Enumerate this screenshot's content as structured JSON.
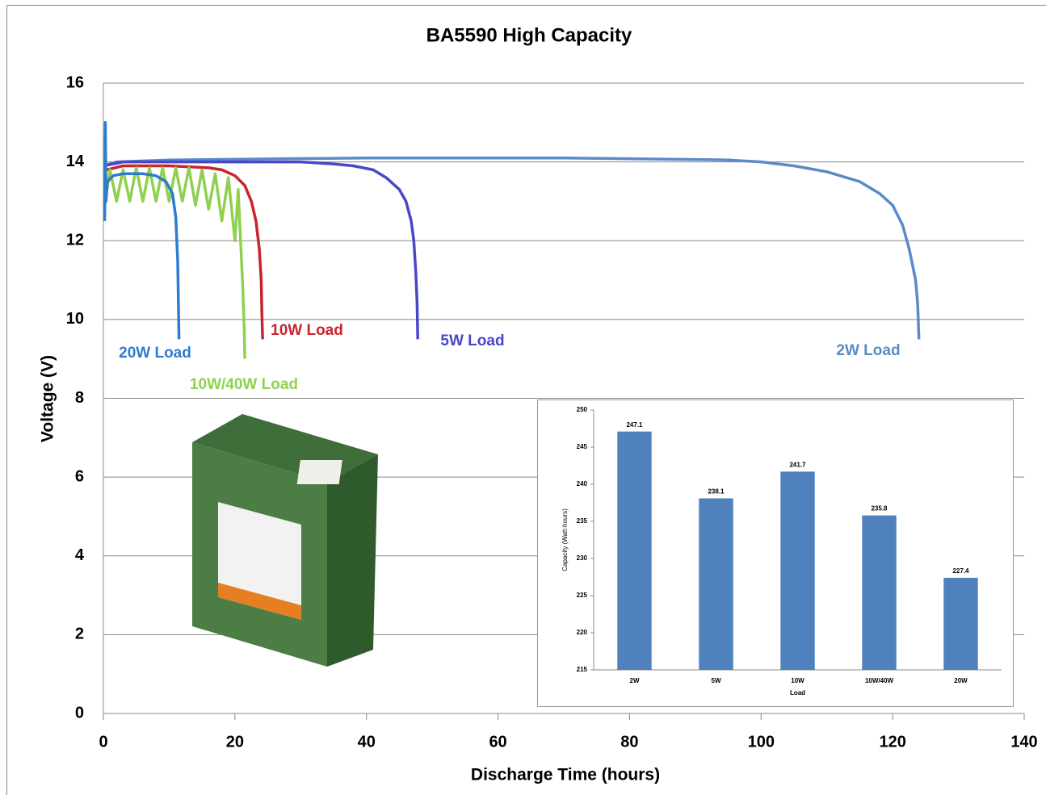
{
  "chart_data": [
    {
      "type": "line",
      "title": "BA5590 High Capacity",
      "xlabel": "Discharge Time (hours)",
      "ylabel": "Voltage (V)",
      "xlim": [
        0,
        140
      ],
      "xticks": [
        0,
        20,
        40,
        60,
        80,
        100,
        120,
        140
      ],
      "ylim": [
        0,
        16
      ],
      "yticks": [
        0,
        2,
        4,
        6,
        8,
        10,
        12,
        14,
        16
      ],
      "grid": true,
      "series": [
        {
          "name": "2W Load",
          "color": "#5b8ac6",
          "x": [
            0,
            2,
            10,
            40,
            70,
            95,
            100,
            105,
            110,
            115,
            118,
            120,
            121.5,
            122.5,
            123,
            123.5,
            123.8,
            124
          ],
          "values": [
            13.9,
            14.0,
            14.05,
            14.1,
            14.1,
            14.05,
            14.0,
            13.9,
            13.75,
            13.5,
            13.2,
            12.9,
            12.4,
            11.8,
            11.4,
            11.0,
            10.4,
            9.5
          ]
        },
        {
          "name": "5W Load",
          "color": "#4a46c8",
          "x": [
            0,
            3,
            15,
            30,
            35,
            38,
            41,
            43,
            45,
            46,
            46.8,
            47.2,
            47.5,
            47.7,
            47.8
          ],
          "values": [
            13.9,
            14.0,
            14.0,
            14.0,
            13.95,
            13.9,
            13.8,
            13.6,
            13.3,
            13.0,
            12.5,
            12.0,
            11.2,
            10.4,
            9.5
          ]
        },
        {
          "name": "10W Load",
          "color": "#c8242c",
          "x": [
            0.5,
            3,
            10,
            16,
            18,
            20,
            21.5,
            22.5,
            23.2,
            23.7,
            24,
            24.1,
            24.2
          ],
          "values": [
            13.8,
            13.9,
            13.9,
            13.85,
            13.8,
            13.65,
            13.4,
            13.0,
            12.5,
            11.8,
            11.0,
            10.2,
            9.5
          ]
        },
        {
          "name": "10W/40W Load",
          "color": "#8fd14f",
          "x": [
            0.3,
            1,
            2,
            3,
            4,
            5,
            6,
            7,
            8,
            9,
            10,
            11,
            12,
            13,
            14,
            15,
            16,
            17,
            18,
            19,
            20,
            20.5,
            21,
            21.2,
            21.4,
            21.5
          ],
          "values": [
            13.0,
            13.8,
            13.0,
            13.8,
            13.0,
            13.85,
            13.0,
            13.85,
            13.0,
            13.85,
            13.0,
            13.85,
            13.0,
            13.85,
            12.9,
            13.8,
            12.8,
            13.7,
            12.5,
            13.6,
            12.0,
            13.3,
            11.5,
            10.8,
            9.8,
            9.0
          ]
        },
        {
          "name": "20W Load",
          "color": "#2f7bd0",
          "x": [
            0.2,
            0.3,
            0.4,
            0.6,
            1.5,
            3,
            6,
            8,
            9.5,
            10.5,
            11,
            11.3,
            11.4,
            11.5
          ],
          "values": [
            12.5,
            15.0,
            13.0,
            13.5,
            13.65,
            13.7,
            13.7,
            13.65,
            13.5,
            13.2,
            12.6,
            11.5,
            10.5,
            9.5
          ]
        }
      ]
    },
    {
      "type": "bar",
      "xlabel": "Load",
      "ylabel": "Capacity (Watt-hours)",
      "categories": [
        "2W",
        "5W",
        "10W",
        "10W/40W",
        "20W"
      ],
      "values": [
        247.1,
        238.1,
        241.7,
        235.8,
        227.4
      ],
      "color": "#4f81bd",
      "ylim": [
        215,
        250
      ],
      "yticks": [
        215,
        220,
        225,
        230,
        235,
        240,
        245,
        250
      ]
    }
  ]
}
